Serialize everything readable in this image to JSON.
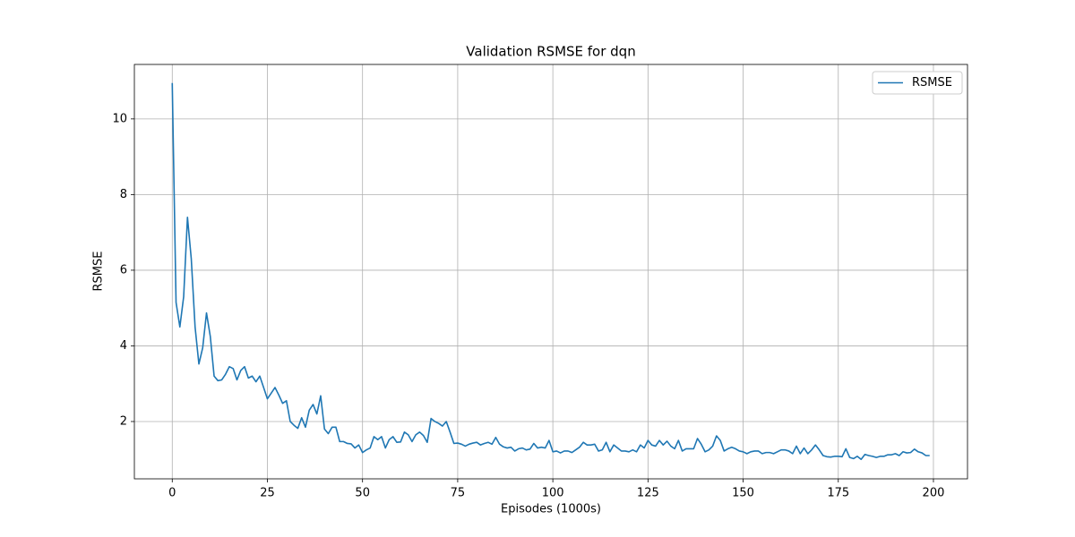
{
  "chart_data": {
    "type": "line",
    "title": "Validation RSMSE for dqn",
    "x_label": "Episodes (1000s)",
    "y_label": "RSMSE",
    "x": [
      0,
      1,
      2,
      3,
      4,
      5,
      6,
      7,
      8,
      9,
      10,
      11,
      12,
      13,
      14,
      15,
      16,
      17,
      18,
      19,
      20,
      21,
      22,
      23,
      24,
      25,
      26,
      27,
      28,
      29,
      30,
      31,
      32,
      33,
      34,
      35,
      36,
      37,
      38,
      39,
      40,
      41,
      42,
      43,
      44,
      45,
      46,
      47,
      48,
      49,
      50,
      51,
      52,
      53,
      54,
      55,
      56,
      57,
      58,
      59,
      60,
      61,
      62,
      63,
      64,
      65,
      66,
      67,
      68,
      69,
      70,
      71,
      72,
      73,
      74,
      75,
      76,
      77,
      78,
      79,
      80,
      81,
      82,
      83,
      84,
      85,
      86,
      87,
      88,
      89,
      90,
      91,
      92,
      93,
      94,
      95,
      96,
      97,
      98,
      99,
      100,
      101,
      102,
      103,
      104,
      105,
      106,
      107,
      108,
      109,
      110,
      111,
      112,
      113,
      114,
      115,
      116,
      117,
      118,
      119,
      120,
      121,
      122,
      123,
      124,
      125,
      126,
      127,
      128,
      129,
      130,
      131,
      132,
      133,
      134,
      135,
      136,
      137,
      138,
      139,
      140,
      141,
      142,
      143,
      144,
      145,
      146,
      147,
      148,
      149,
      150,
      151,
      152,
      153,
      154,
      155,
      156,
      157,
      158,
      159,
      160,
      161,
      162,
      163,
      164,
      165,
      166,
      167,
      168,
      169,
      170,
      171,
      172,
      173,
      174,
      175,
      176,
      177,
      178,
      179,
      180,
      181,
      182,
      183,
      184,
      185,
      186,
      187,
      188,
      189,
      190,
      191,
      192,
      193,
      194,
      195,
      196,
      197,
      198,
      199
    ],
    "series": [
      {
        "name": "RSMSE",
        "color": "#1f77b4",
        "values": [
          10.95,
          5.15,
          4.5,
          5.3,
          7.4,
          6.3,
          4.5,
          3.52,
          3.95,
          4.87,
          4.25,
          3.2,
          3.08,
          3.1,
          3.25,
          3.45,
          3.4,
          3.1,
          3.35,
          3.45,
          3.15,
          3.2,
          3.05,
          3.2,
          2.9,
          2.6,
          2.75,
          2.9,
          2.7,
          2.48,
          2.55,
          2.0,
          1.9,
          1.82,
          2.1,
          1.85,
          2.3,
          2.45,
          2.2,
          2.68,
          1.8,
          1.68,
          1.85,
          1.85,
          1.47,
          1.47,
          1.42,
          1.41,
          1.3,
          1.38,
          1.18,
          1.25,
          1.3,
          1.6,
          1.52,
          1.6,
          1.3,
          1.52,
          1.6,
          1.45,
          1.46,
          1.72,
          1.65,
          1.47,
          1.65,
          1.72,
          1.63,
          1.45,
          2.08,
          2.0,
          1.95,
          1.88,
          2.0,
          1.72,
          1.42,
          1.43,
          1.4,
          1.35,
          1.4,
          1.43,
          1.45,
          1.38,
          1.42,
          1.45,
          1.4,
          1.58,
          1.4,
          1.33,
          1.3,
          1.32,
          1.22,
          1.28,
          1.3,
          1.25,
          1.27,
          1.42,
          1.3,
          1.32,
          1.3,
          1.5,
          1.2,
          1.22,
          1.17,
          1.22,
          1.22,
          1.18,
          1.25,
          1.32,
          1.45,
          1.38,
          1.38,
          1.4,
          1.22,
          1.25,
          1.45,
          1.2,
          1.38,
          1.3,
          1.22,
          1.22,
          1.2,
          1.25,
          1.2,
          1.38,
          1.3,
          1.5,
          1.38,
          1.35,
          1.5,
          1.38,
          1.48,
          1.35,
          1.28,
          1.5,
          1.22,
          1.28,
          1.28,
          1.28,
          1.55,
          1.4,
          1.2,
          1.25,
          1.35,
          1.62,
          1.5,
          1.22,
          1.28,
          1.32,
          1.28,
          1.22,
          1.2,
          1.15,
          1.2,
          1.22,
          1.22,
          1.15,
          1.18,
          1.18,
          1.15,
          1.2,
          1.25,
          1.25,
          1.22,
          1.15,
          1.35,
          1.15,
          1.3,
          1.15,
          1.25,
          1.38,
          1.25,
          1.1,
          1.07,
          1.06,
          1.08,
          1.08,
          1.07,
          1.28,
          1.05,
          1.02,
          1.08,
          1.0,
          1.13,
          1.1,
          1.08,
          1.05,
          1.08,
          1.08,
          1.12,
          1.12,
          1.15,
          1.1,
          1.2,
          1.17,
          1.18,
          1.27,
          1.2,
          1.17,
          1.1,
          1.1
        ]
      }
    ],
    "xlim": [
      -9.95,
      208.95
    ],
    "ylim": [
      0.485,
      11.44
    ],
    "xticks": [
      0,
      25,
      50,
      75,
      100,
      125,
      150,
      175,
      200
    ],
    "yticks": [
      2,
      4,
      6,
      8,
      10
    ],
    "grid": true,
    "legend": "upper right"
  }
}
